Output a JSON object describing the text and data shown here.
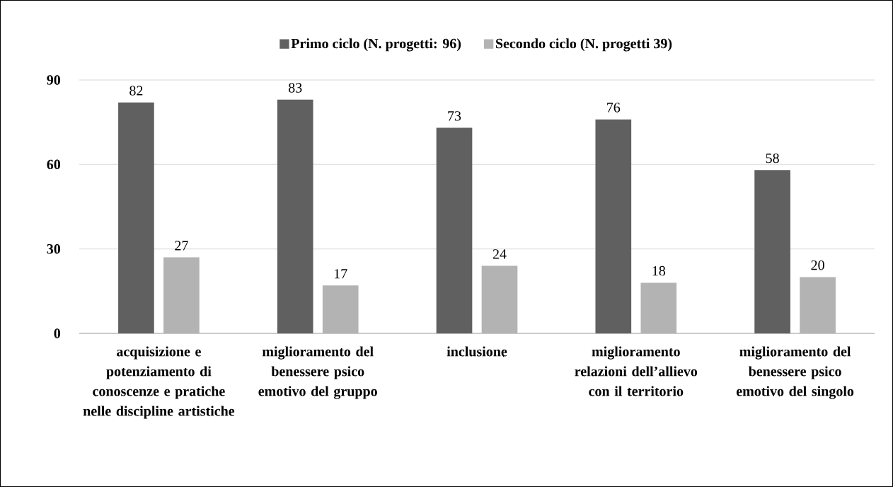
{
  "chart_data": {
    "type": "bar",
    "categories": [
      "acquisizione e potenziamento di conoscenze e pratiche nelle discipline artistiche",
      "miglioramento del benessere psico emotivo del gruppo",
      "inclusione",
      "miglioramento relazioni dell’allievo con il territorio",
      "miglioramento del benessere psico emotivo del singolo"
    ],
    "series": [
      {
        "name": "Primo ciclo (N. progetti: 96)",
        "color": "#606060",
        "values": [
          82,
          83,
          73,
          76,
          58
        ]
      },
      {
        "name": "Secondo ciclo (N. progetti 39)",
        "color": "#b3b3b3",
        "values": [
          27,
          17,
          24,
          18,
          20
        ]
      }
    ],
    "ylim": [
      0,
      90
    ],
    "yticks": [
      0,
      30,
      60,
      90
    ],
    "grid": "y",
    "legend": "top",
    "data_labels": true
  }
}
